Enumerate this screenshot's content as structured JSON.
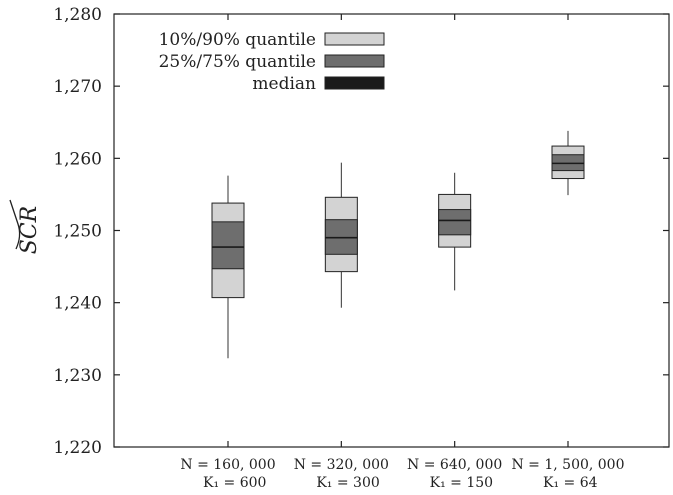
{
  "chart_data": {
    "type": "box",
    "ylabel": "SCR",
    "ylim": [
      1220,
      1280
    ],
    "yticks": [
      1220,
      1230,
      1240,
      1250,
      1260,
      1270,
      1280
    ],
    "ytick_labels": [
      "1,220",
      "1,230",
      "1,240",
      "1,250",
      "1,260",
      "1,270",
      "1,280"
    ],
    "grid": false,
    "legend_position": "top-left",
    "legend": [
      {
        "label": "10%/90% quantile",
        "color": "#d3d3d3"
      },
      {
        "label": "25%/75% quantile",
        "color": "#6e6e6e"
      },
      {
        "label": "median",
        "color": "#1a1a1a"
      }
    ],
    "categories": [
      {
        "line1": "N = 160, 000",
        "line2": "K₁ = 600"
      },
      {
        "line1": "N = 320, 000",
        "line2": "K₁ = 300"
      },
      {
        "line1": "N = 640, 000",
        "line2": "K₁ = 150"
      },
      {
        "line1": "N = 1, 500, 000",
        "line2": "K₁ = 64"
      }
    ],
    "boxes": [
      {
        "min": 1232.3,
        "p10": 1240.7,
        "p25": 1244.7,
        "median": 1247.7,
        "p75": 1251.2,
        "p90": 1253.8,
        "max": 1257.6
      },
      {
        "min": 1239.3,
        "p10": 1244.3,
        "p25": 1246.7,
        "median": 1249.0,
        "p75": 1251.5,
        "p90": 1254.6,
        "max": 1259.4
      },
      {
        "min": 1241.7,
        "p10": 1247.7,
        "p25": 1249.4,
        "median": 1251.4,
        "p75": 1252.9,
        "p90": 1255.0,
        "max": 1258.0
      },
      {
        "min": 1254.9,
        "p10": 1257.2,
        "p25": 1258.3,
        "median": 1259.3,
        "p75": 1260.5,
        "p90": 1261.7,
        "max": 1263.8
      }
    ]
  }
}
